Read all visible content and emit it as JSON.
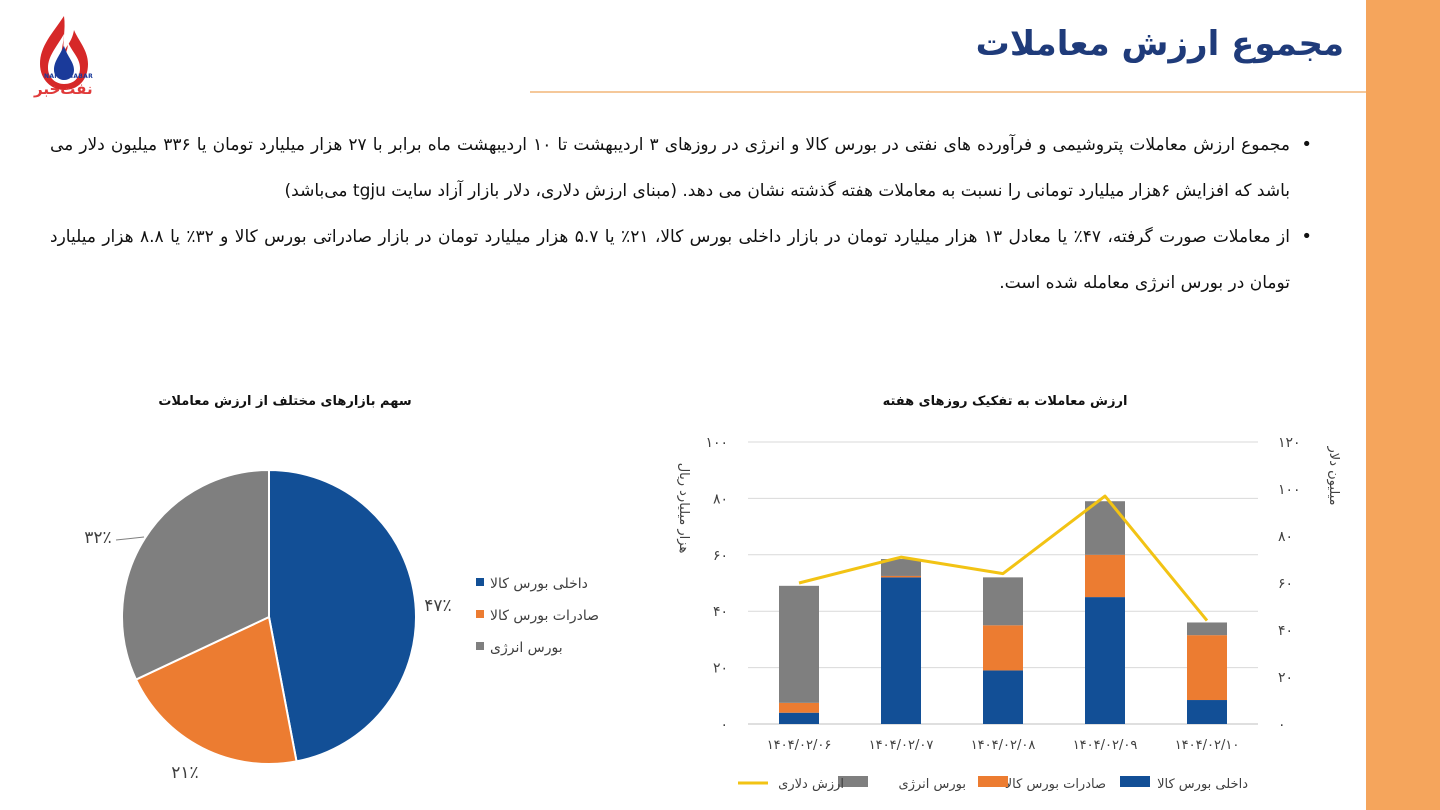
{
  "brand": {
    "logo_text": "نفت‌خبر",
    "logo_latin": "NAFTKHABAR"
  },
  "colors": {
    "accent": "#f5a55c",
    "title": "#1f3b7a",
    "blue": "#124f96",
    "orange": "#ec7c31",
    "gray": "#7f7f7f",
    "yellow": "#f2c314"
  },
  "header": {
    "title": "مجموع ارزش معاملات"
  },
  "bullets": [
    "مجموع ارزش معاملات پتروشیمی و فرآورده های نفتی در بورس کالا و انرژی در روزهای ۳ اردیبهشت تا ۱۰ اردیبهشت ماه برابر با ۲۷ هزار میلیارد تومان یا ۳۳۶ میلیون دلار می باشد که افزایش ۶هزار میلیارد تومانی را نسبت به معاملات هفته گذشته نشان می دهد. (مبنای ارزش دلاری، دلار بازار آزاد سایت tgju می‌باشد)",
    "از معاملات صورت گرفته، ۴۷٪ یا معادل ۱۳ هزار میلیارد تومان در بازار داخلی بورس کالا، ۲۱٪  یا ۵.۷ هزار میلیارد تومان در بازار صادراتی بورس کالا و ۳۲٪ یا ۸.۸ هزار میلیارد تومان در بورس انرژی معامله شده است."
  ],
  "chart_data": [
    {
      "type": "bar",
      "stacked": true,
      "title": "ارزش معاملات به تفکیک روزهای هفته",
      "categories": [
        "۱۴۰۴/۰۲/۰۶",
        "۱۴۰۴/۰۲/۰۷",
        "۱۴۰۴/۰۲/۰۸",
        "۱۴۰۴/۰۲/۰۹",
        "۱۴۰۴/۰۲/۱۰"
      ],
      "ylabel": "هزار میلیارد ریال",
      "y2label": "میلیون دلار",
      "ylim": [
        0,
        100
      ],
      "y2lim": [
        0,
        120
      ],
      "yticks": [
        "۰",
        "۲۰",
        "۴۰",
        "۶۰",
        "۸۰",
        "۱۰۰"
      ],
      "y2ticks": [
        "۰",
        "۲۰",
        "۴۰",
        "۶۰",
        "۸۰",
        "۱۰۰",
        "۱۲۰"
      ],
      "grid": true,
      "series": [
        {
          "name": "داخلی بورس کالا",
          "color": "#124f96",
          "values": [
            4,
            52,
            19,
            45,
            8.5
          ]
        },
        {
          "name": "صادرات بورس کالا",
          "color": "#ec7c31",
          "values": [
            3.5,
            0.5,
            16,
            15,
            23
          ]
        },
        {
          "name": "بورس انرژی",
          "color": "#7f7f7f",
          "values": [
            41.5,
            6,
            17,
            19,
            4.5
          ]
        },
        {
          "name": "ارزش دلاری",
          "color": "#f2c314",
          "type": "line",
          "axis": "right",
          "values": [
            60,
            71,
            64,
            97,
            44
          ]
        }
      ],
      "legend_position": "bottom"
    },
    {
      "type": "pie",
      "title": "سهم بازارهای مختلف از ارزش معاملات",
      "labels": [
        "داخلی بورس کالا",
        "صادرات بورس کالا",
        "بورس انرژی"
      ],
      "values": [
        47,
        21,
        32
      ],
      "value_labels": [
        "۴۷٪",
        "۲۱٪",
        "۳۲٪"
      ],
      "colors": [
        "#124f96",
        "#ec7c31",
        "#7f7f7f"
      ],
      "legend_position": "right"
    }
  ]
}
